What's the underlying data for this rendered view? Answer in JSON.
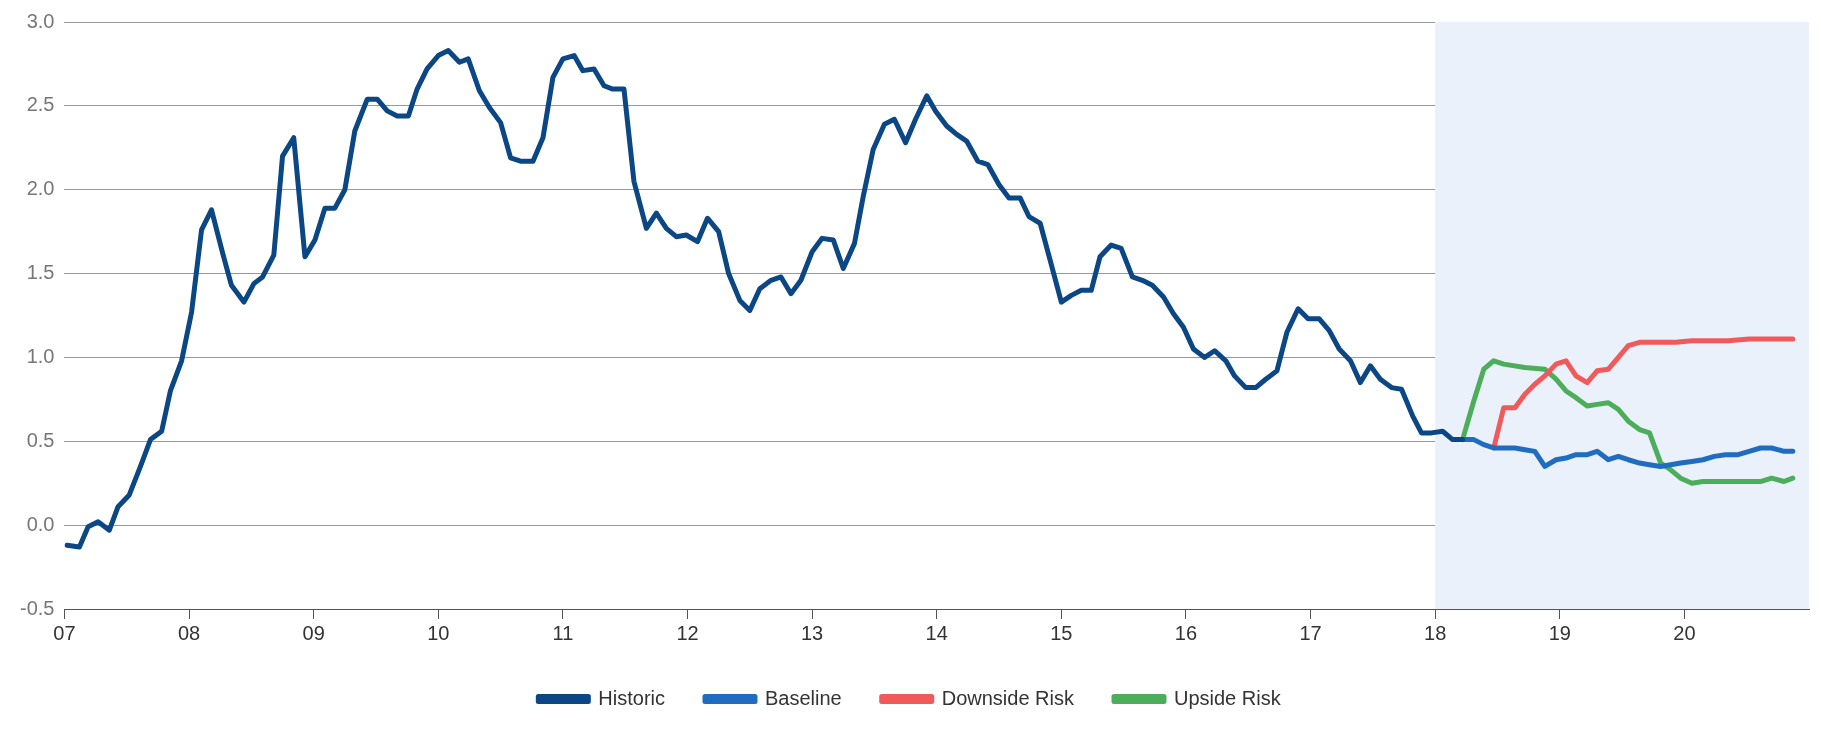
{
  "chart_data": {
    "type": "line",
    "xlim": [
      2007,
      2021
    ],
    "xticks": [
      {
        "value": 2007,
        "label": "07"
      },
      {
        "value": 2008,
        "label": "08"
      },
      {
        "value": 2009,
        "label": "09"
      },
      {
        "value": 2010,
        "label": "10"
      },
      {
        "value": 2011,
        "label": "11"
      },
      {
        "value": 2012,
        "label": "12"
      },
      {
        "value": 2013,
        "label": "13"
      },
      {
        "value": 2014,
        "label": "14"
      },
      {
        "value": 2015,
        "label": "15"
      },
      {
        "value": 2016,
        "label": "16"
      },
      {
        "value": 2017,
        "label": "17"
      },
      {
        "value": 2018,
        "label": "18"
      },
      {
        "value": 2019,
        "label": "19"
      },
      {
        "value": 2020,
        "label": "20"
      }
    ],
    "ylim": [
      -0.5,
      3.0
    ],
    "yticks": [
      {
        "value": -0.5,
        "label": "-0.5"
      },
      {
        "value": 0,
        "label": "0.0"
      },
      {
        "value": 0.5,
        "label": "0.5"
      },
      {
        "value": 1,
        "label": "1.0"
      },
      {
        "value": 1.5,
        "label": "1.5"
      },
      {
        "value": 2,
        "label": "2.0"
      },
      {
        "value": 2.5,
        "label": "2.5"
      },
      {
        "value": 3,
        "label": "3.0"
      }
    ],
    "grid": "y",
    "legend": "bottom",
    "marker": "none",
    "line_style": "solid",
    "bands": [
      {
        "axis": "x",
        "from": 2018,
        "to": 2021,
        "color": "#eaf1fb"
      }
    ],
    "series": [
      {
        "name": "Historic",
        "color": "#0b4785",
        "x": [
          2007.02,
          2007.12,
          2007.19,
          2007.27,
          2007.36,
          2007.43,
          2007.52,
          2007.61,
          2007.69,
          2007.78,
          2007.85,
          2007.94,
          2008.02,
          2008.1,
          2008.18,
          2008.27,
          2008.34,
          2008.44,
          2008.52,
          2008.59,
          2008.68,
          2008.75,
          2008.84,
          2008.93,
          2009.01,
          2009.09,
          2009.17,
          2009.25,
          2009.33,
          2009.43,
          2009.51,
          2009.59,
          2009.67,
          2009.76,
          2009.83,
          2009.91,
          2010.0,
          2010.08,
          2010.17,
          2010.24,
          2010.33,
          2010.41,
          2010.5,
          2010.58,
          2010.66,
          2010.76,
          2010.84,
          2010.92,
          2011.0,
          2011.09,
          2011.16,
          2011.25,
          2011.33,
          2011.4,
          2011.49,
          2011.57,
          2011.67,
          2011.75,
          2011.83,
          2011.91,
          2011.99,
          2012.08,
          2012.16,
          2012.25,
          2012.33,
          2012.42,
          2012.5,
          2012.58,
          2012.67,
          2012.75,
          2012.83,
          2012.91,
          2013.0,
          2013.08,
          2013.17,
          2013.25,
          2013.34,
          2013.41,
          2013.49,
          2013.58,
          2013.66,
          2013.75,
          2013.83,
          2013.92,
          2013.99,
          2014.08,
          2014.16,
          2014.24,
          2014.33,
          2014.41,
          2014.5,
          2014.58,
          2014.67,
          2014.74,
          2014.83,
          2014.91,
          2015.0,
          2015.08,
          2015.16,
          2015.24,
          2015.31,
          2015.4,
          2015.48,
          2015.57,
          2015.65,
          2015.73,
          2015.82,
          2015.9,
          2015.98,
          2016.06,
          2016.15,
          2016.23,
          2016.32,
          2016.39,
          2016.48,
          2016.56,
          2016.64,
          2016.73,
          2016.81,
          2016.9,
          2016.98,
          2017.07,
          2017.15,
          2017.23,
          2017.32,
          2017.4,
          2017.48,
          2017.56,
          2017.65,
          2017.73,
          2017.82,
          2017.89,
          2017.97,
          2018.06,
          2018.14,
          2018.22
        ],
        "values": [
          -0.12,
          -0.13,
          -0.01,
          0.02,
          -0.03,
          0.11,
          0.18,
          0.35,
          0.51,
          0.56,
          0.8,
          0.98,
          1.27,
          1.76,
          1.88,
          1.62,
          1.43,
          1.33,
          1.44,
          1.48,
          1.61,
          2.2,
          2.31,
          1.6,
          1.7,
          1.89,
          1.89,
          2.0,
          2.35,
          2.54,
          2.54,
          2.47,
          2.44,
          2.44,
          2.6,
          2.72,
          2.8,
          2.83,
          2.76,
          2.78,
          2.59,
          2.49,
          2.4,
          2.19,
          2.17,
          2.17,
          2.31,
          2.67,
          2.78,
          2.8,
          2.71,
          2.72,
          2.62,
          2.6,
          2.6,
          2.05,
          1.77,
          1.86,
          1.77,
          1.72,
          1.73,
          1.69,
          1.83,
          1.75,
          1.5,
          1.34,
          1.28,
          1.41,
          1.46,
          1.48,
          1.38,
          1.46,
          1.63,
          1.71,
          1.7,
          1.53,
          1.68,
          1.96,
          2.24,
          2.39,
          2.42,
          2.28,
          2.42,
          2.56,
          2.47,
          2.38,
          2.33,
          2.29,
          2.17,
          2.15,
          2.03,
          1.95,
          1.95,
          1.84,
          1.8,
          1.58,
          1.33,
          1.37,
          1.4,
          1.4,
          1.6,
          1.67,
          1.65,
          1.48,
          1.46,
          1.43,
          1.36,
          1.26,
          1.18,
          1.05,
          1.0,
          1.04,
          0.98,
          0.89,
          0.82,
          0.82,
          0.87,
          0.92,
          1.15,
          1.29,
          1.23,
          1.23,
          1.16,
          1.05,
          0.98,
          0.85,
          0.95,
          0.87,
          0.82,
          0.81,
          0.65,
          0.55,
          0.55,
          0.56,
          0.51,
          0.51
        ]
      },
      {
        "name": "Baseline",
        "color": "#1f6cc0",
        "x": [
          2018.22,
          2018.31,
          2018.39,
          2018.47,
          2018.55,
          2018.64,
          2018.72,
          2018.8,
          2018.88,
          2018.97,
          2019.05,
          2019.13,
          2019.22,
          2019.3,
          2019.39,
          2019.47,
          2019.55,
          2019.64,
          2019.72,
          2019.81,
          2019.89,
          2019.97,
          2020.06,
          2020.15,
          2020.24,
          2020.33,
          2020.43,
          2020.52,
          2020.61,
          2020.7,
          2020.8,
          2020.87
        ],
        "values": [
          0.51,
          0.51,
          0.48,
          0.46,
          0.46,
          0.46,
          0.45,
          0.44,
          0.35,
          0.39,
          0.4,
          0.42,
          0.42,
          0.44,
          0.39,
          0.41,
          0.39,
          0.37,
          0.36,
          0.35,
          0.36,
          0.37,
          0.38,
          0.39,
          0.41,
          0.42,
          0.42,
          0.44,
          0.46,
          0.46,
          0.44,
          0.44
        ]
      },
      {
        "name": "Downside Risk",
        "color": "#f05a5b",
        "x": [
          2018.47,
          2018.55,
          2018.64,
          2018.72,
          2018.8,
          2018.88,
          2018.97,
          2019.05,
          2019.13,
          2019.22,
          2019.3,
          2019.39,
          2019.47,
          2019.55,
          2019.64,
          2019.79,
          2019.93,
          2020.06,
          2020.35,
          2020.52,
          2020.87
        ],
        "values": [
          0.46,
          0.7,
          0.7,
          0.78,
          0.84,
          0.89,
          0.96,
          0.98,
          0.89,
          0.85,
          0.92,
          0.93,
          1.0,
          1.07,
          1.09,
          1.09,
          1.09,
          1.1,
          1.1,
          1.11,
          1.11
        ]
      },
      {
        "name": "Upside Risk",
        "color": "#4cae5b",
        "x": [
          2018.22,
          2018.31,
          2018.39,
          2018.47,
          2018.55,
          2018.72,
          2018.88,
          2018.97,
          2019.05,
          2019.13,
          2019.22,
          2019.3,
          2019.39,
          2019.47,
          2019.55,
          2019.64,
          2019.72,
          2019.81,
          2019.89,
          2019.97,
          2020.06,
          2020.15,
          2020.35,
          2020.52,
          2020.61,
          2020.7,
          2020.8,
          2020.87
        ],
        "values": [
          0.51,
          0.74,
          0.93,
          0.98,
          0.96,
          0.94,
          0.93,
          0.87,
          0.8,
          0.76,
          0.71,
          0.72,
          0.73,
          0.69,
          0.62,
          0.57,
          0.55,
          0.37,
          0.33,
          0.28,
          0.25,
          0.26,
          0.26,
          0.26,
          0.26,
          0.28,
          0.26,
          0.28
        ]
      }
    ]
  }
}
